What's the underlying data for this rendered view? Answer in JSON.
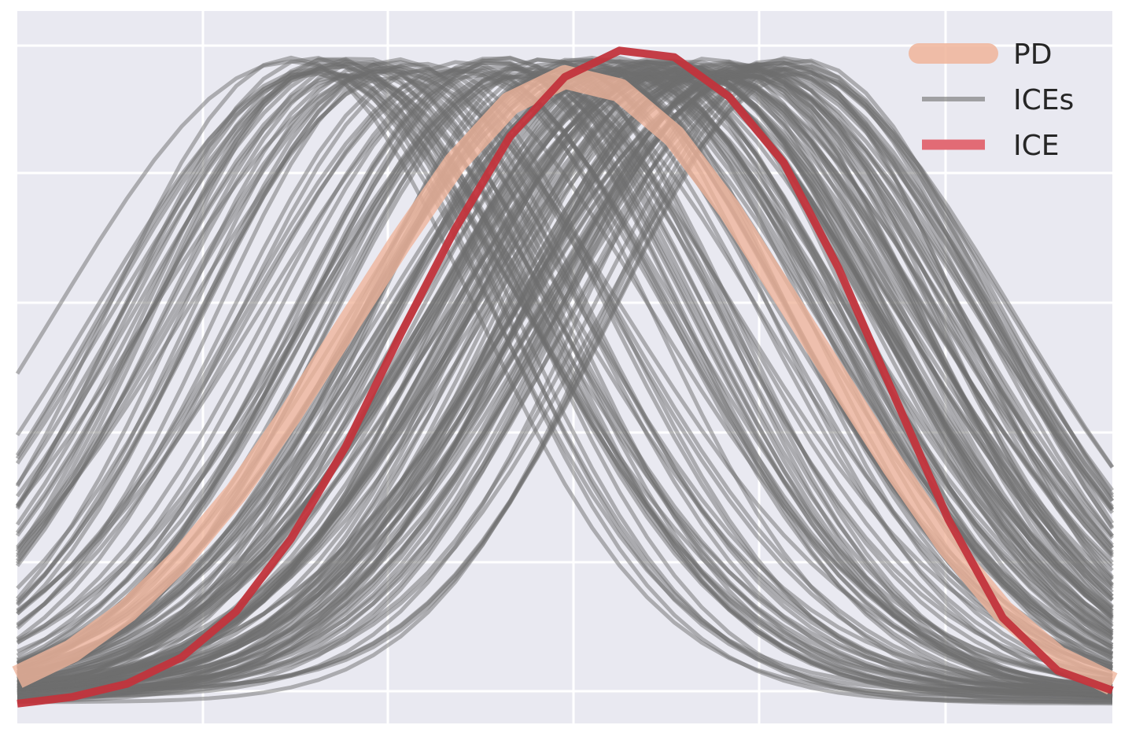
{
  "chart_data": {
    "type": "line",
    "title": "",
    "xlabel": "",
    "ylabel": "",
    "xlim": [
      0,
      1
    ],
    "ylim": [
      -0.03,
      1.05
    ],
    "grid": true,
    "legend_placement": "top-right",
    "colors": {
      "background": "#e9e9f1",
      "grid": "#ffffff",
      "pd": "#f0b49a",
      "ices": "#6e6e6e",
      "ice": "#c2343c",
      "ice_legend": "#e26b75"
    },
    "legend": [
      {
        "key": "pd",
        "label": "PD"
      },
      {
        "key": "ices",
        "label": "ICEs"
      },
      {
        "key": "ice",
        "label": "ICE"
      }
    ],
    "series": [
      {
        "name": "PD",
        "x": [
          0,
          0.05,
          0.1,
          0.15,
          0.2,
          0.25,
          0.3,
          0.35,
          0.4,
          0.45,
          0.5,
          0.55,
          0.6,
          0.65,
          0.7,
          0.75,
          0.8,
          0.85,
          0.9,
          0.95,
          1.0
        ],
        "y": [
          0.04,
          0.08,
          0.14,
          0.22,
          0.32,
          0.44,
          0.57,
          0.7,
          0.82,
          0.91,
          0.95,
          0.93,
          0.86,
          0.75,
          0.62,
          0.49,
          0.36,
          0.24,
          0.14,
          0.07,
          0.03
        ]
      },
      {
        "name": "ICE",
        "x": [
          0,
          0.05,
          0.1,
          0.15,
          0.2,
          0.25,
          0.3,
          0.35,
          0.4,
          0.45,
          0.5,
          0.55,
          0.6,
          0.65,
          0.7,
          0.75,
          0.8,
          0.85,
          0.9,
          0.95,
          1.0
        ],
        "y": [
          0.0,
          0.01,
          0.03,
          0.07,
          0.14,
          0.25,
          0.39,
          0.56,
          0.72,
          0.86,
          0.95,
          0.99,
          0.98,
          0.92,
          0.82,
          0.66,
          0.47,
          0.28,
          0.13,
          0.05,
          0.02
        ]
      }
    ],
    "ices": {
      "count": 150,
      "peak_range": [
        0.25,
        0.72
      ],
      "amplitude": 0.98,
      "width_range": [
        0.16,
        0.22
      ],
      "baseline_range": [
        0.0,
        0.03
      ]
    }
  }
}
